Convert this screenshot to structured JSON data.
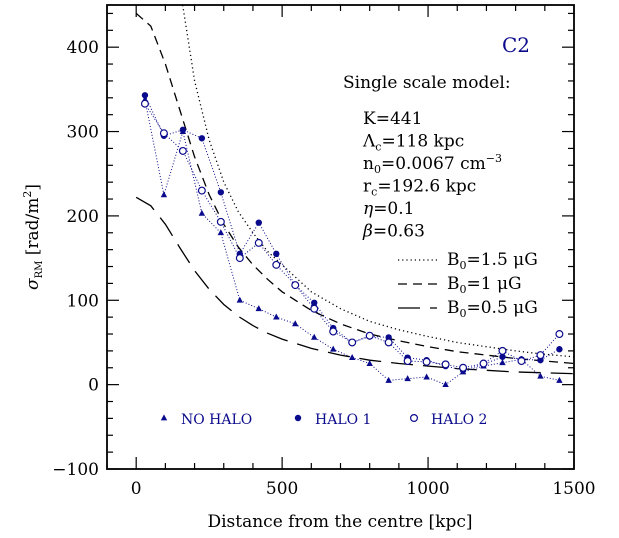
{
  "chart_data": {
    "type": "line",
    "panel_label": "C2",
    "xlabel": "Distance from the centre [kpc]",
    "ylabel": "σ_RM [rad/m²]",
    "ylabel_parts": {
      "sym": "σ",
      "sub": "RM",
      "unit": "[rad/m",
      "sup": "2",
      "close": "]"
    },
    "xlim": [
      -100,
      1500
    ],
    "ylim": [
      -100,
      450
    ],
    "x_ticks": [
      0,
      500,
      1000,
      1500
    ],
    "y_ticks": [
      -100,
      0,
      100,
      200,
      300,
      400
    ],
    "x_tick_labels": [
      "0",
      "500",
      "1000",
      "1500"
    ],
    "y_tick_labels": [
      "−100",
      "0",
      "100",
      "200",
      "300",
      "400"
    ],
    "model": {
      "title": "Single scale model:",
      "params": [
        {
          "pre": "K=441",
          "sub": "",
          "sup": "",
          "post": ""
        },
        {
          "pre": "Λ",
          "sub": "c",
          "sup": "",
          "post": "=118 kpc"
        },
        {
          "pre": "n",
          "sub": "0",
          "sup": "",
          "post": "=0.0067 cm",
          "sup_after": "−3"
        },
        {
          "pre": "r",
          "sub": "c",
          "sup": "",
          "post": "=192.6 kpc"
        },
        {
          "pre": "η",
          "sub": "",
          "sup": "",
          "post": "=0.1"
        },
        {
          "pre": "β",
          "sub": "",
          "sup": "",
          "post": "=0.63"
        }
      ]
    },
    "curve_legend": [
      {
        "style": "dotted",
        "pre": "B",
        "sub": "0",
        "post": "=1.5 μG"
      },
      {
        "style": "short-dash",
        "pre": "B",
        "sub": "0",
        "post": "=1 μG"
      },
      {
        "style": "long-dash",
        "pre": "B",
        "sub": "0",
        "post": "=0.5 μG"
      }
    ],
    "marker_legend": [
      {
        "marker": "triangle",
        "label": "NO HALO"
      },
      {
        "marker": "filled-circle",
        "label": "HALO 1"
      },
      {
        "marker": "open-circle",
        "label": "HALO 2"
      }
    ],
    "model_curves": [
      {
        "style": "dotted",
        "x": [
          0,
          100,
          150,
          200,
          250,
          300,
          350,
          400,
          450,
          500,
          600,
          700,
          800,
          900,
          1000,
          1100,
          1200,
          1300,
          1400,
          1500
        ],
        "y": [
          640,
          560,
          470,
          360,
          290,
          240,
          205,
          180,
          158,
          142,
          110,
          90,
          75,
          65,
          57,
          50,
          45,
          40,
          36,
          33
        ]
      },
      {
        "style": "short-dash",
        "x": [
          0,
          50,
          100,
          150,
          200,
          250,
          300,
          350,
          400,
          450,
          500,
          600,
          700,
          800,
          900,
          1000,
          1100,
          1200,
          1300,
          1400,
          1500
        ],
        "y": [
          440,
          425,
          380,
          325,
          270,
          225,
          190,
          163,
          142,
          125,
          110,
          88,
          72,
          60,
          52,
          45,
          39,
          35,
          31,
          28,
          25
        ]
      },
      {
        "style": "long-dash",
        "x": [
          0,
          50,
          100,
          150,
          200,
          250,
          300,
          350,
          400,
          450,
          500,
          600,
          700,
          800,
          900,
          1000,
          1100,
          1200,
          1300,
          1400,
          1500
        ],
        "y": [
          222,
          212,
          190,
          162,
          135,
          113,
          95,
          81,
          70,
          61,
          54,
          43,
          35,
          29,
          25,
          22,
          19,
          17,
          15,
          14,
          13
        ]
      }
    ],
    "series": [
      {
        "name": "NO HALO",
        "marker": "triangle",
        "x": [
          30,
          95,
          160,
          225,
          290,
          355,
          420,
          480,
          545,
          610,
          675,
          740,
          800,
          865,
          930,
          995,
          1060,
          1120,
          1190,
          1255,
          1320,
          1385,
          1450
        ],
        "y": [
          338,
          225,
          300,
          203,
          180,
          100,
          90,
          80,
          72,
          56,
          42,
          32,
          25,
          5,
          7,
          9,
          0,
          15,
          22,
          26,
          30,
          10,
          5
        ]
      },
      {
        "name": "HALO 1",
        "marker": "filled-circle",
        "x": [
          30,
          95,
          160,
          225,
          290,
          355,
          420,
          480,
          545,
          610,
          675,
          740,
          800,
          865,
          930,
          995,
          1060,
          1120,
          1190,
          1255,
          1320,
          1385,
          1450
        ],
        "y": [
          343,
          295,
          302,
          292,
          228,
          155,
          192,
          155,
          118,
          97,
          67,
          50,
          57,
          56,
          32,
          29,
          22,
          17,
          24,
          33,
          30,
          29,
          42
        ]
      },
      {
        "name": "HALO 2",
        "marker": "open-circle",
        "x": [
          30,
          95,
          160,
          225,
          290,
          355,
          420,
          480,
          545,
          610,
          675,
          740,
          800,
          865,
          930,
          995,
          1060,
          1120,
          1190,
          1255,
          1320,
          1385,
          1450
        ],
        "y": [
          333,
          298,
          277,
          230,
          193,
          150,
          168,
          142,
          118,
          90,
          63,
          50,
          58,
          50,
          28,
          27,
          24,
          20,
          25,
          40,
          28,
          35,
          60
        ]
      }
    ],
    "colors": {
      "data": "#0a0a8c",
      "model": "#000000"
    }
  }
}
